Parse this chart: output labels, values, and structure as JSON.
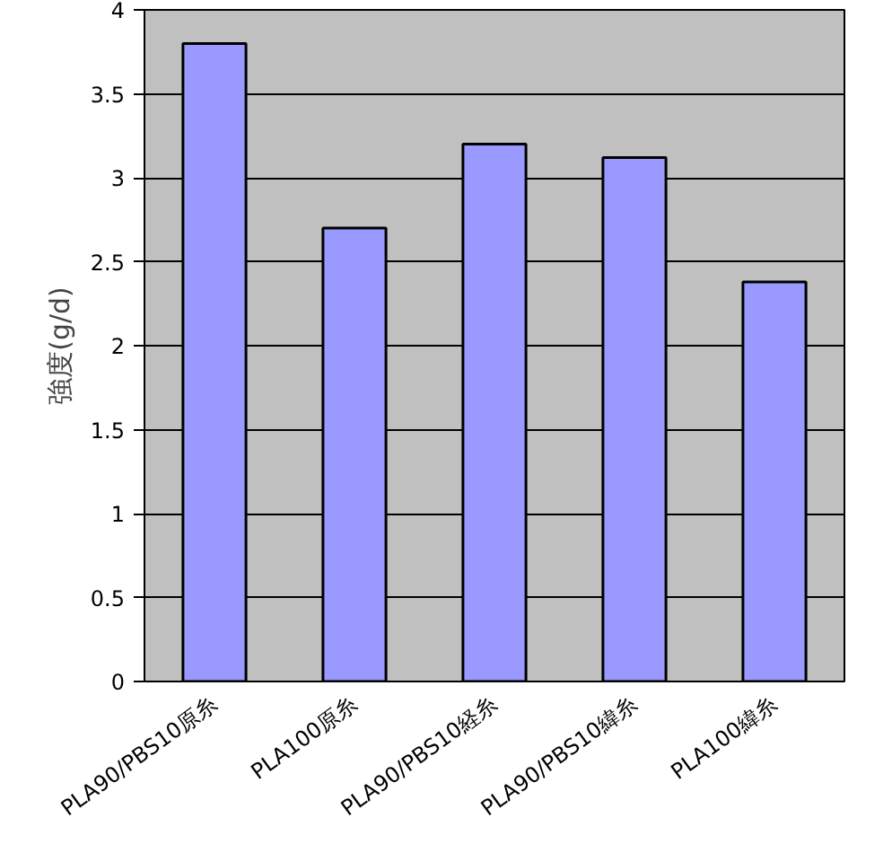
{
  "chart_data": {
    "type": "bar",
    "ylabel": "強度(g/d)",
    "categories": [
      "PLA90/PBS10原糸",
      "PLA100原糸",
      "PLA90/PBS10経糸",
      "PLA90/PBS10緯糸",
      "PLA100緯糸"
    ],
    "values": [
      3.8,
      2.7,
      3.2,
      3.12,
      2.38
    ],
    "color": "#9999ff",
    "ylim": [
      0,
      4
    ],
    "yticks": [
      0,
      0.5,
      1,
      1.5,
      2,
      2.5,
      3,
      3.5,
      4
    ],
    "grid": "y"
  }
}
